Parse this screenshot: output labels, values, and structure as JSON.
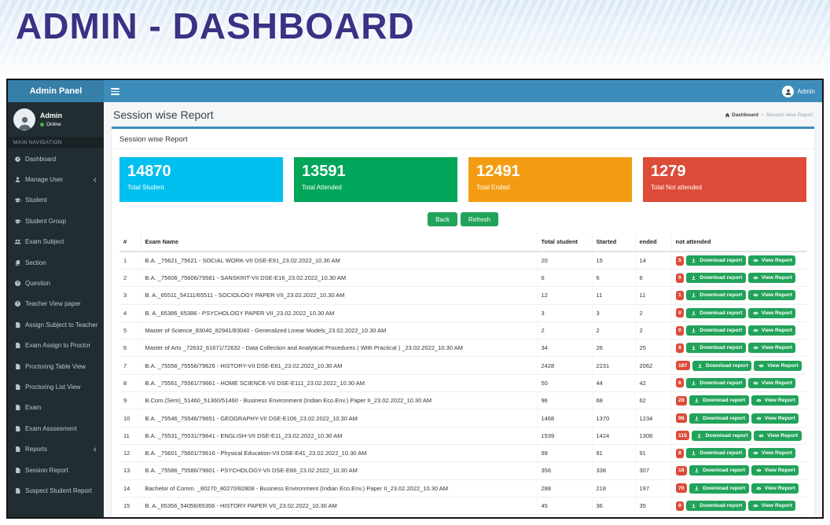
{
  "banner": {
    "title": "ADMIN - DASHBOARD"
  },
  "app": {
    "logo": "Admin Panel",
    "navbar": {
      "user": "Admin"
    },
    "sidebar": {
      "user": {
        "name": "Admin",
        "status": "Online"
      },
      "section_label": "MAIN NAVIGATION",
      "items": [
        {
          "label": "Dashboard",
          "icon": "dashboard",
          "chevron": false
        },
        {
          "label": "Manage User",
          "icon": "user",
          "chevron": true
        },
        {
          "label": "Student",
          "icon": "graduation-cap",
          "chevron": false
        },
        {
          "label": "Student Group",
          "icon": "graduation-cap",
          "chevron": false
        },
        {
          "label": "Exam Subject",
          "icon": "users",
          "chevron": false
        },
        {
          "label": "Section",
          "icon": "copy",
          "chevron": false
        },
        {
          "label": "Question",
          "icon": "question-circle",
          "chevron": false
        },
        {
          "label": "Teacher View paper",
          "icon": "question-circle",
          "chevron": false
        },
        {
          "label": "Assign Subject to Teacher",
          "icon": "file",
          "chevron": false
        },
        {
          "label": "Exam Assign to Proctor",
          "icon": "file",
          "chevron": false
        },
        {
          "label": "Proctoring Table View",
          "icon": "file",
          "chevron": false
        },
        {
          "label": "Proctoring List View",
          "icon": "file",
          "chevron": false
        },
        {
          "label": "Exam",
          "icon": "file",
          "chevron": false
        },
        {
          "label": "Exam Asssesment",
          "icon": "file",
          "chevron": false
        },
        {
          "label": "Reports",
          "icon": "file",
          "chevron": true
        },
        {
          "label": "Session Report",
          "icon": "file",
          "chevron": false
        },
        {
          "label": "Suspect Student Report",
          "icon": "file",
          "chevron": false
        }
      ]
    },
    "content": {
      "page_title": "Session wise Report",
      "breadcrumb": {
        "home": "Dashboard",
        "separator": ">",
        "current": "Session wise Report"
      },
      "panel_title": "Session wise Report",
      "cards": [
        {
          "value": "14870",
          "label": "Total Student",
          "color": "#00c0ef"
        },
        {
          "value": "13591",
          "label": "Total Attended",
          "color": "#00a65a"
        },
        {
          "value": "12491",
          "label": "Total Ended",
          "color": "#f39c12"
        },
        {
          "value": "1279",
          "label": "Total Not attended",
          "color": "#dd4b39"
        }
      ],
      "actions": {
        "back": "Back",
        "refresh": "Refresh"
      },
      "table": {
        "columns": [
          "#",
          "Exam Name",
          "Total student",
          "Started",
          "ended",
          "not attended"
        ],
        "row_buttons": {
          "download": "Download report",
          "view": "View Report"
        },
        "rows": [
          {
            "num": 1,
            "name": "B.A. _75621_75621 - SOCIAL WORK-VII DSE-E91_23.02.2022_10.30 AM",
            "total": 20,
            "started": 15,
            "ended": 14,
            "not_attended": 5
          },
          {
            "num": 2,
            "name": "B.A. _75606_75606/79581 - SANSKRIT-VII DSE-E16_23.02.2022_10.30 AM",
            "total": 6,
            "started": 6,
            "ended": 6,
            "not_attended": 0
          },
          {
            "num": 3,
            "name": "B. A._65511_54111/65511 - SOCIOLOGY PAPER VII_23.02.2022_10.30 AM",
            "total": 12,
            "started": 11,
            "ended": 11,
            "not_attended": 1
          },
          {
            "num": 4,
            "name": "B. A._65386_65386 - PSYCHOLOGY PAPER VII_23.02.2022_10.30 AM",
            "total": 3,
            "started": 3,
            "ended": 2,
            "not_attended": 0
          },
          {
            "num": 5,
            "name": "Master of Science_83040_82941/83040 - Generalized Linear Models_23.02.2022_10.30 AM",
            "total": 2,
            "started": 2,
            "ended": 2,
            "not_attended": 0
          },
          {
            "num": 6,
            "name": "Master of Arts _72632_61671/72632 - Data Collection and Analytical Procedures ( With Practical ) _23.02.2022_10.30 AM",
            "total": 34,
            "started": 26,
            "ended": 25,
            "not_attended": 8
          },
          {
            "num": 7,
            "name": "B.A. _75556_75556/79626 - HISTORY-VII DSE-E61_23.02.2022_10.30 AM",
            "total": 2428,
            "started": 2231,
            "ended": 2062,
            "not_attended": 197
          },
          {
            "num": 8,
            "name": "B.A. _75561_75561/79661 - HOME SCIENCE-VII DSE-E111_23.02.2022_10.30 AM",
            "total": 50,
            "started": 44,
            "ended": 42,
            "not_attended": 6
          },
          {
            "num": 9,
            "name": "B.Com.(Sem)_51460_51360/51460 - Business Environment (Indian Eco.Env.) Paper II_23.02.2022_10.30 AM",
            "total": 96,
            "started": 68,
            "ended": 62,
            "not_attended": 28
          },
          {
            "num": 10,
            "name": "B.A. _75546_75546/79651 - GEOGRAPHY-VII DSE-E106_23.02.2022_10.30 AM",
            "total": 1468,
            "started": 1370,
            "ended": 1234,
            "not_attended": 98
          },
          {
            "num": 11,
            "name": "B.A. _75531_75531/79641 - ENGLISH-VII DSE-E11_23.02.2022_10.30 AM",
            "total": 1539,
            "started": 1424,
            "ended": 1308,
            "not_attended": 115
          },
          {
            "num": 12,
            "name": "B.A. _75601_75601/79616 - Physical Education-VII DSE-E41_23.02.2022_10.30 AM",
            "total": 99,
            "started": 91,
            "ended": 91,
            "not_attended": 8
          },
          {
            "num": 13,
            "name": "B.A. _75586_75586/79601 - PSYCHOLOGY-VII DSE-E86_23.02.2022_10.30 AM",
            "total": 356,
            "started": 338,
            "ended": 307,
            "not_attended": 18
          },
          {
            "num": 14,
            "name": "Bachelor of Comm. _80270_80270/82808 - Business Environment (Indian Eco.Env.) Paper II_23.02.2022_10.30 AM",
            "total": 288,
            "started": 218,
            "ended": 197,
            "not_attended": 70
          },
          {
            "num": 15,
            "name": "B. A._65356_54056/65356 - HISTORY PAPER VII_23.02.2022_10.30 AM",
            "total": 45,
            "started": 36,
            "ended": 35,
            "not_attended": 9
          }
        ]
      }
    },
    "colors": {
      "navbar": "#3c8dbc",
      "logo": "#367fa9",
      "sidebar": "#222d32",
      "button_green": "#21a35a",
      "badge_red": "#dd4b39",
      "banner_title": "#3a3285"
    }
  }
}
